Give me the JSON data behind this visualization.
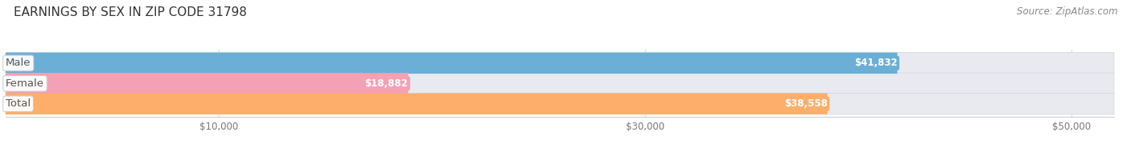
{
  "title": "EARNINGS BY SEX IN ZIP CODE 31798",
  "source": "Source: ZipAtlas.com",
  "categories": [
    "Male",
    "Female",
    "Total"
  ],
  "values": [
    41832,
    18882,
    38558
  ],
  "bar_colors": [
    "#6baed6",
    "#f4a0b5",
    "#fdae6b"
  ],
  "value_label_colors": [
    "#5a9ec5",
    "#e88aaa",
    "#f0a050"
  ],
  "label_texts": [
    "$41,832",
    "$18,882",
    "$38,558"
  ],
  "bar_bg_color": "#e8eaf0",
  "xlim": [
    0,
    52000
  ],
  "xmin": 0,
  "xtick_values": [
    10000,
    30000,
    50000
  ],
  "xtick_labels": [
    "$10,000",
    "$30,000",
    "$50,000"
  ],
  "title_fontsize": 11,
  "source_fontsize": 8.5,
  "label_fontsize": 8.5,
  "category_fontsize": 9.5,
  "bar_height": 0.52,
  "bg_color": "#ffffff",
  "title_color": "#333333",
  "category_text_color": "#555555"
}
